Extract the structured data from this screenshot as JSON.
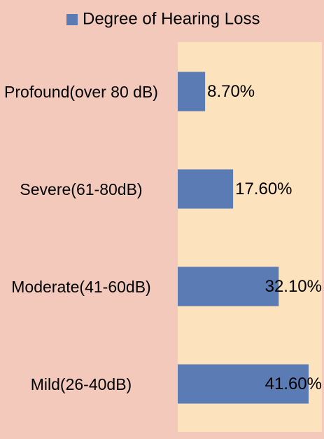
{
  "chart_data": {
    "type": "bar",
    "orientation": "horizontal",
    "legend_label": "Degree of Hearing Loss",
    "categories": [
      "Profound(over 80 dB)",
      "Severe(61-80dB)",
      "Moderate(41-60dB)",
      "Mild(26-40dB)"
    ],
    "values": [
      8.7,
      17.6,
      32.1,
      41.6
    ],
    "value_labels": [
      "8.70%",
      "17.60%",
      "32.10%",
      "41.60%"
    ],
    "color": "#5b7bb4"
  }
}
